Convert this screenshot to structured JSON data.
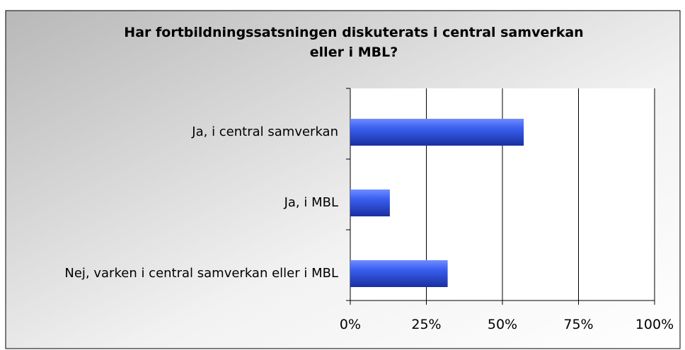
{
  "chart_data": {
    "type": "bar",
    "orientation": "horizontal",
    "title": "Har fortbildningssatsningen diskuterats i central samverkan eller i MBL?",
    "categories": [
      "Ja, i central samverkan",
      "Ja, i MBL",
      "Nej, varken i central samverkan eller i MBL"
    ],
    "values": [
      57,
      13,
      32
    ],
    "color": "#3355dd",
    "xlim": [
      0,
      100
    ],
    "xticks": [
      {
        "value": 0,
        "label": "0%"
      },
      {
        "value": 25,
        "label": "25%"
      },
      {
        "value": 50,
        "label": "50%"
      },
      {
        "value": 75,
        "label": "75%"
      },
      {
        "value": 100,
        "label": "100%"
      }
    ],
    "grid": true
  }
}
